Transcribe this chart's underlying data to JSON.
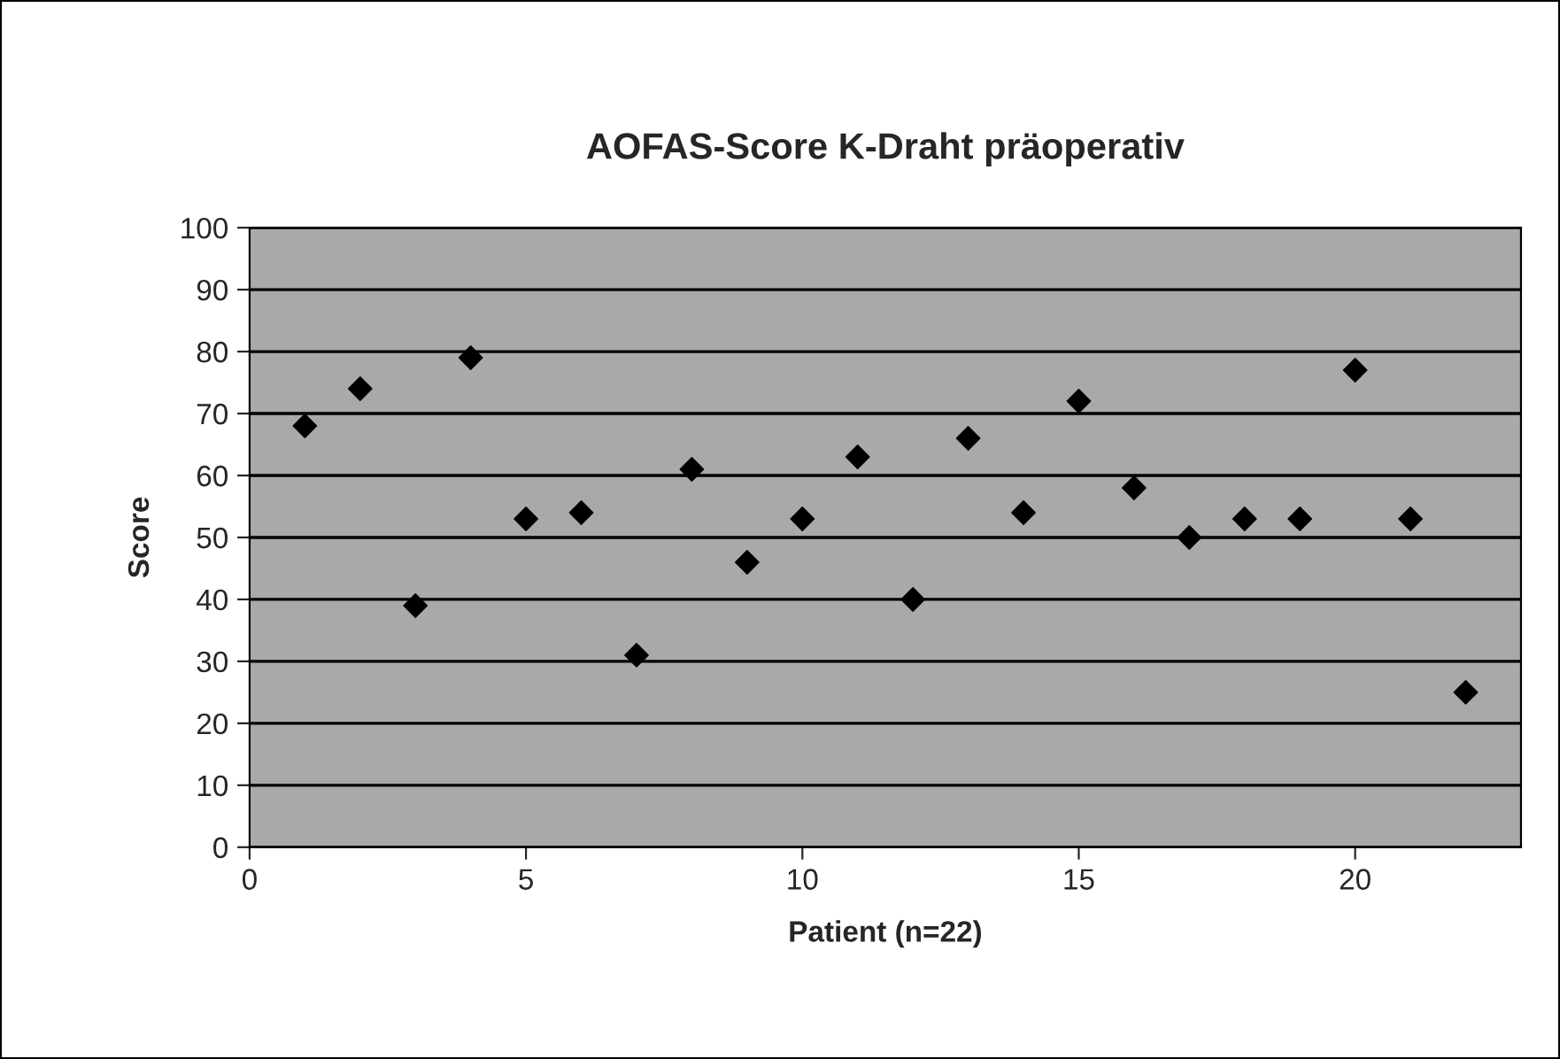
{
  "chart_data": {
    "type": "scatter",
    "title": "AOFAS-Score K-Draht präoperativ",
    "xlabel": "Patient (n=22)",
    "ylabel": "Score",
    "x": [
      1,
      2,
      3,
      4,
      5,
      6,
      7,
      8,
      9,
      10,
      11,
      12,
      13,
      14,
      15,
      16,
      17,
      18,
      19,
      20,
      21,
      22
    ],
    "series": [
      {
        "color": "#000000",
        "values": [
          68,
          74,
          39,
          79,
          53,
          54,
          31,
          61,
          46,
          53,
          63,
          40,
          66,
          54,
          72,
          58,
          50,
          53,
          53,
          77,
          53,
          25
        ]
      }
    ],
    "xlim": [
      0,
      23
    ],
    "xticks": [
      0,
      5,
      10,
      15,
      20
    ],
    "ylim": [
      0,
      100
    ],
    "yticks": [
      0,
      10,
      20,
      30,
      40,
      50,
      60,
      70,
      80,
      90,
      100
    ],
    "grid": "y",
    "marker": "diamond",
    "legend": false
  }
}
